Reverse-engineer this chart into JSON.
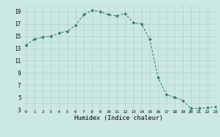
{
  "x": [
    0,
    1,
    2,
    3,
    4,
    5,
    6,
    7,
    8,
    9,
    10,
    11,
    12,
    13,
    14,
    15,
    16,
    17,
    18,
    19,
    20,
    21,
    22,
    23
  ],
  "y": [
    13.5,
    14.5,
    14.8,
    15.0,
    15.5,
    15.8,
    16.8,
    18.5,
    19.2,
    19.0,
    18.5,
    18.3,
    18.7,
    17.2,
    17.0,
    14.5,
    8.3,
    5.5,
    5.0,
    4.5,
    3.2,
    3.2,
    3.3,
    3.5
  ],
  "xlabel": "Humidex (Indice chaleur)",
  "xlim": [
    -0.5,
    23
  ],
  "ylim": [
    3,
    20
  ],
  "yticks": [
    3,
    5,
    7,
    9,
    11,
    13,
    15,
    17,
    19
  ],
  "xticks": [
    0,
    1,
    2,
    3,
    4,
    5,
    6,
    7,
    8,
    9,
    10,
    11,
    12,
    13,
    14,
    15,
    16,
    17,
    18,
    19,
    20,
    21,
    22,
    23
  ],
  "line_color": "#2d7d6e",
  "marker": "D",
  "marker_size": 2.0,
  "bg_color": "#cce8e4",
  "grid_major_color": "#b0ccc8",
  "grid_minor_color": "#c8e0dc"
}
